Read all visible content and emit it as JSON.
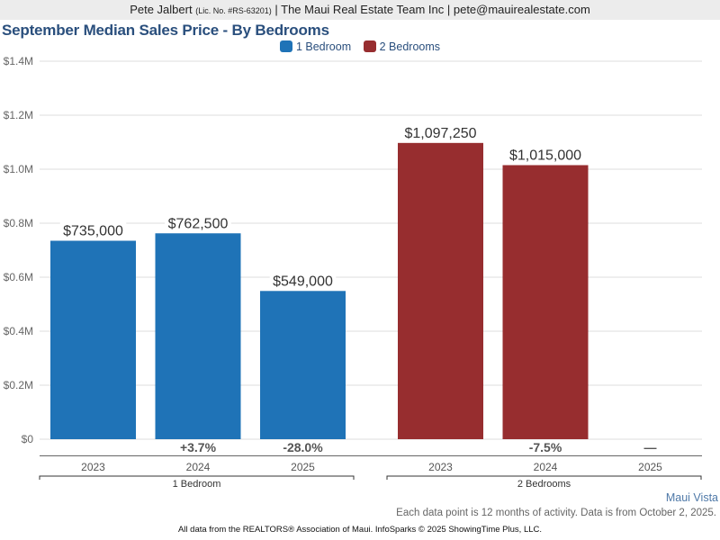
{
  "header": {
    "agent_name": "Pete Jalbert",
    "license": "(Lic. No. #RS-63201)",
    "separator_1": " | ",
    "company": "The Maui Real Estate Team Inc",
    "separator_2": " | ",
    "email": "pete@mauirealestate.com"
  },
  "footer": {
    "area_link": "Maui Vista",
    "note": "Each data point is 12 months of activity. Data is from October 2, 2025.",
    "credit": "All data from the REALTORS® Association of Maui. InfoSparks © 2025 ShowingTime Plus, LLC."
  },
  "colors": {
    "one_bedroom": "#1f73b7",
    "two_bedrooms": "#972d2f",
    "title": "#2a4f7d"
  },
  "chart_data": {
    "type": "bar",
    "title": "September Median Sales Price - By Bedrooms",
    "xlabel": "",
    "ylabel": "",
    "ylim": [
      0,
      1400000
    ],
    "y_ticks": [
      0,
      200000,
      400000,
      600000,
      800000,
      1000000,
      1200000,
      1400000
    ],
    "y_tick_labels": [
      "$0",
      "$0.2M",
      "$0.4M",
      "$0.6M",
      "$0.8M",
      "$1.0M",
      "$1.2M",
      "$1.4M"
    ],
    "grid": true,
    "legend_position": "top-center",
    "categories": [
      "2023",
      "2024",
      "2025"
    ],
    "series": [
      {
        "name": "1 Bedroom",
        "color": "#1f73b7",
        "values": [
          735000,
          762500,
          549000
        ],
        "value_labels": [
          "$735,000",
          "$762,500",
          "$549,000"
        ],
        "changes": [
          "",
          "+3.7%",
          "-28.0%"
        ]
      },
      {
        "name": "2 Bedrooms",
        "color": "#972d2f",
        "values": [
          1097250,
          1015000,
          null
        ],
        "value_labels": [
          "$1,097,250",
          "$1,015,000",
          ""
        ],
        "changes": [
          "",
          "-7.5%",
          "—"
        ]
      }
    ]
  }
}
